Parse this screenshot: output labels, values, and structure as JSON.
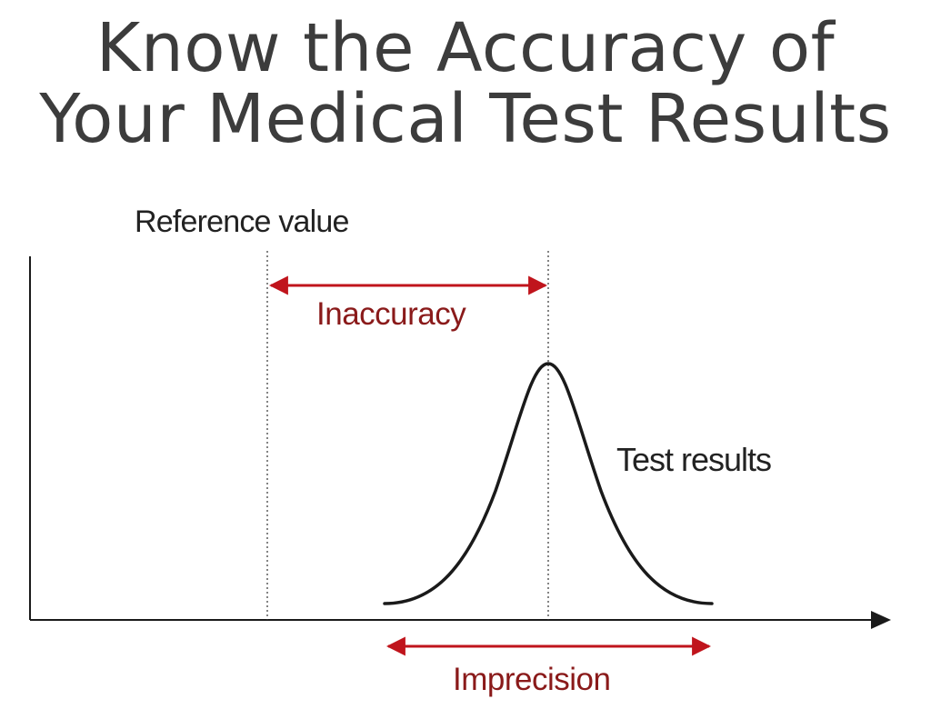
{
  "title": {
    "line1": "Know the Accuracy of",
    "line2": "Your Medical Test Results"
  },
  "diagram": {
    "reference_label": "Reference value",
    "inaccuracy_label": "Inaccuracy",
    "test_results_label": "Test results",
    "imprecision_label": "Imprecision"
  },
  "colors": {
    "title": "#3c3c3c",
    "axis": "#1a1a1a",
    "arrow": "#c0141c",
    "arrow_label": "#8a1a1a",
    "curve": "#1a1a1a"
  }
}
